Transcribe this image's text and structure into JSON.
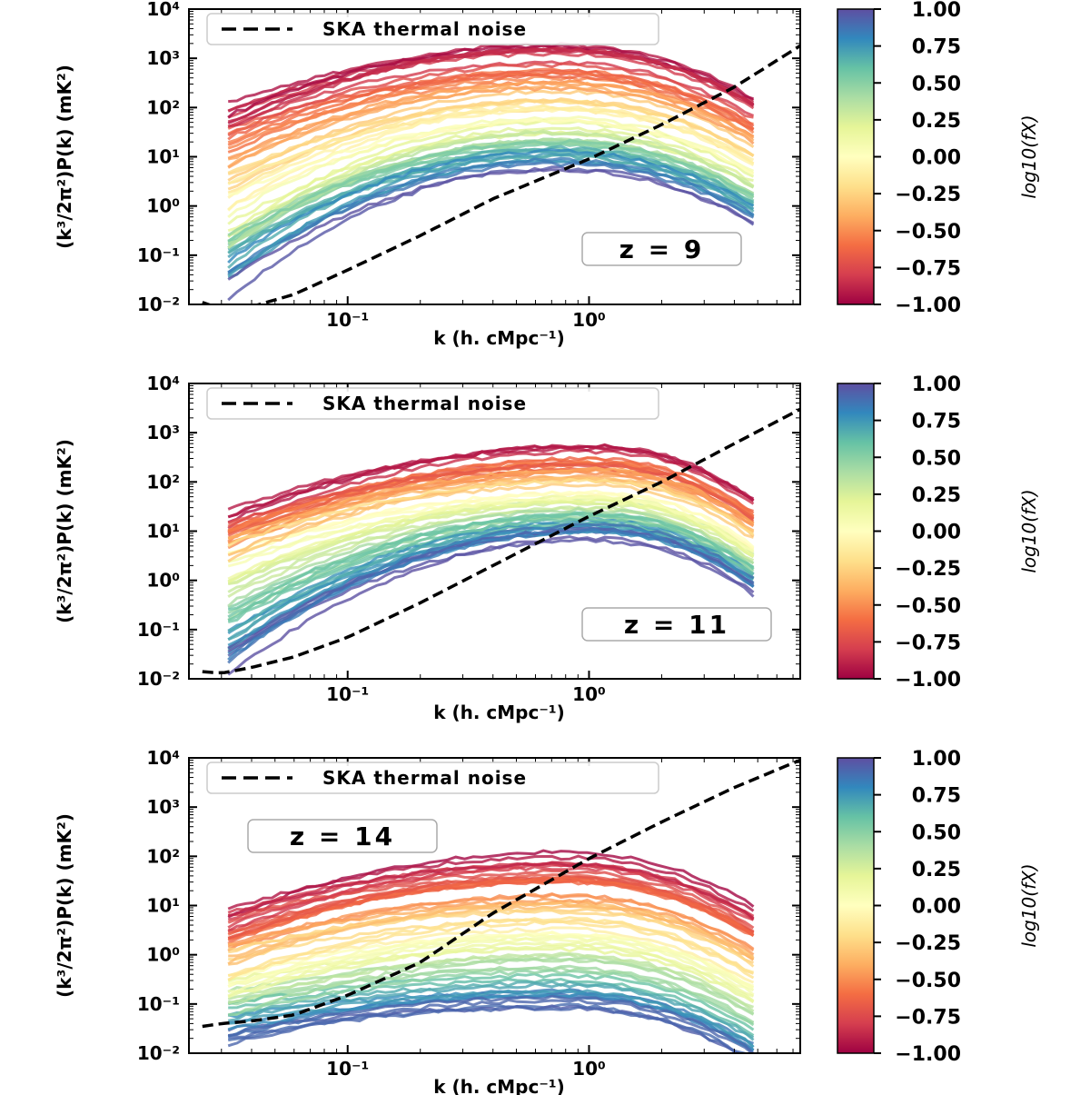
{
  "chart_data": [
    {
      "type": "line",
      "panel": "z = 9",
      "annotation": "z = 9",
      "xlabel": "k (h. cMpc⁻¹)",
      "ylabel": "(k³/2π²)P(k) (mK²)",
      "xscale": "log",
      "yscale": "log",
      "xlim": [
        0.022,
        7.5
      ],
      "ylim": [
        0.01,
        10000
      ],
      "x_tick_labels": [
        "10⁻¹",
        "10⁰"
      ],
      "y_tick_labels": [
        "10⁻²",
        "10⁻¹",
        "10⁰",
        "10¹",
        "10²",
        "10³",
        "10⁴"
      ],
      "legend": {
        "entries": [
          "SKA thermal noise"
        ],
        "placement": "top-left"
      },
      "grid": false,
      "colorbar": {
        "label": "log10(fX)",
        "range": [
          -1.0,
          1.0
        ],
        "tick_labels": [
          "1.00",
          "0.75",
          "0.50",
          "0.25",
          "0.00",
          "−0.25",
          "−0.50",
          "−0.75",
          "−1.00"
        ],
        "colormap": "Spectral",
        "colors": [
          "#9e0142",
          "#d53e4f",
          "#f46d43",
          "#fdae61",
          "#fee08b",
          "#ffffbf",
          "#e6f598",
          "#abdda4",
          "#66c2a5",
          "#3288bd",
          "#5e4fa2"
        ]
      },
      "series": [
        {
          "name": "SKA thermal noise",
          "style": "dashed",
          "color": "#000000",
          "x": [
            0.025,
            0.03,
            0.04,
            0.06,
            0.1,
            0.2,
            0.4,
            1.0,
            2.0,
            4.0,
            7.5
          ],
          "y": [
            0.011,
            0.008,
            0.009,
            0.016,
            0.05,
            0.25,
            1.4,
            9,
            45,
            260,
            1800
          ]
        }
      ],
      "model_family": {
        "count_shown": 60,
        "log10_fX_range": [
          -1.0,
          1.0
        ],
        "x_range": [
          0.032,
          4.8
        ],
        "peak_k": 0.7,
        "amplitude_at_peak_mK2": {
          "log10fX=-1.00": 2000,
          "log10fX=0.00": 60,
          "log10fX=1.00": 6
        },
        "amplitude_at_low_k_mK2": {
          "log10fX=-1.00": 100,
          "log10fX=0.00": 1,
          "log10fX=1.00": 0.02
        }
      }
    },
    {
      "type": "line",
      "panel": "z = 11",
      "annotation": "z = 11",
      "xlabel": "k (h. cMpc⁻¹)",
      "ylabel": "(k³/2π²)P(k) (mK²)",
      "xscale": "log",
      "yscale": "log",
      "xlim": [
        0.022,
        7.5
      ],
      "ylim": [
        0.01,
        10000
      ],
      "x_tick_labels": [
        "10⁻¹",
        "10⁰"
      ],
      "y_tick_labels": [
        "10⁻²",
        "10⁻¹",
        "10⁰",
        "10¹",
        "10²",
        "10³",
        "10⁴"
      ],
      "legend": {
        "entries": [
          "SKA thermal noise"
        ],
        "placement": "top-left"
      },
      "grid": false,
      "colorbar": {
        "label": "log10(fX)",
        "range": [
          -1.0,
          1.0
        ],
        "tick_labels": [
          "1.00",
          "0.75",
          "0.50",
          "0.25",
          "0.00",
          "−0.25",
          "−0.50",
          "−0.75",
          "−1.00"
        ],
        "colormap": "Spectral",
        "colors": [
          "#9e0142",
          "#d53e4f",
          "#f46d43",
          "#fdae61",
          "#fee08b",
          "#ffffbf",
          "#e6f598",
          "#abdda4",
          "#66c2a5",
          "#3288bd",
          "#5e4fa2"
        ]
      },
      "series": [
        {
          "name": "SKA thermal noise",
          "style": "dashed",
          "color": "#000000",
          "x": [
            0.025,
            0.03,
            0.04,
            0.06,
            0.1,
            0.2,
            0.4,
            1.0,
            2.0,
            4.0,
            7.5
          ],
          "y": [
            0.014,
            0.013,
            0.017,
            0.028,
            0.07,
            0.35,
            2.0,
            20,
            100,
            600,
            3000
          ]
        }
      ],
      "model_family": {
        "count_shown": 60,
        "log10_fX_range": [
          -1.0,
          1.0
        ],
        "x_range": [
          0.032,
          4.8
        ],
        "peak_k": 1.0,
        "amplitude_at_peak_mK2": {
          "log10fX=-1.00": 550,
          "log10fX=0.00": 60,
          "log10fX=1.00": 8
        },
        "amplitude_at_low_k_mK2": {
          "log10fX=-1.00": 30,
          "log10fX=0.00": 2,
          "log10fX=1.00": 0.02
        }
      }
    },
    {
      "type": "line",
      "panel": "z = 14",
      "annotation": "z = 14",
      "xlabel": "k (h. cMpc⁻¹)",
      "ylabel": "(k³/2π²)P(k) (mK²)",
      "xscale": "log",
      "yscale": "log",
      "xlim": [
        0.022,
        7.5
      ],
      "ylim": [
        0.01,
        10000
      ],
      "x_tick_labels": [
        "10⁻¹",
        "10⁰"
      ],
      "y_tick_labels": [
        "10⁻²",
        "10⁻¹",
        "10⁰",
        "10¹",
        "10²",
        "10³",
        "10⁴"
      ],
      "legend": {
        "entries": [
          "SKA thermal noise"
        ],
        "placement": "top-left"
      },
      "grid": false,
      "colorbar": {
        "label": "log10(fX)",
        "range": [
          -1.0,
          1.0
        ],
        "tick_labels": [
          "1.00",
          "0.75",
          "0.50",
          "0.25",
          "0.00",
          "−0.25",
          "−0.50",
          "−0.75",
          "−1.00"
        ],
        "colormap": "Spectral",
        "colors": [
          "#9e0142",
          "#d53e4f",
          "#f46d43",
          "#fdae61",
          "#fee08b",
          "#ffffbf",
          "#e6f598",
          "#abdda4",
          "#66c2a5",
          "#3288bd",
          "#5e4fa2"
        ]
      },
      "series": [
        {
          "name": "SKA thermal noise",
          "style": "dashed",
          "color": "#000000",
          "x": [
            0.025,
            0.03,
            0.04,
            0.06,
            0.1,
            0.2,
            0.4,
            1.0,
            2.0,
            4.0,
            7.5
          ],
          "y": [
            0.035,
            0.04,
            0.045,
            0.06,
            0.15,
            0.7,
            7,
            90,
            500,
            2500,
            9000
          ]
        }
      ],
      "model_family": {
        "count_shown": 60,
        "log10_fX_range": [
          -1.0,
          1.0
        ],
        "x_range": [
          0.032,
          4.8
        ],
        "peak_k": 0.75,
        "amplitude_at_peak_mK2": {
          "log10fX=-1.00": 110,
          "log10fX=0.00": 3,
          "log10fX=1.00": 0.08
        },
        "amplitude_at_low_k_mK2": {
          "log10fX=-1.00": 10,
          "log10fX=0.00": 0.3,
          "log10fX=1.00": 0.02
        }
      }
    }
  ]
}
